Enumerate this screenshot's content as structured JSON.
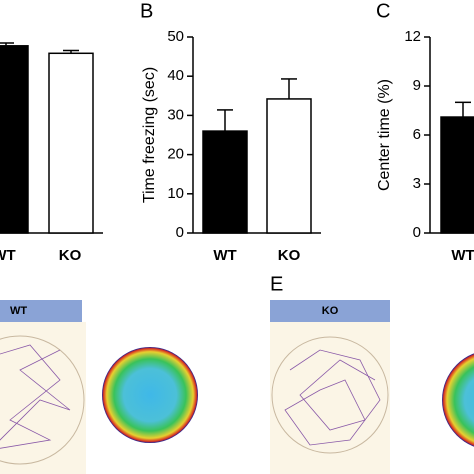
{
  "chart_data": [
    {
      "type": "bar",
      "categories": [
        "WT",
        "KO"
      ],
      "values": [
        100,
        96
      ],
      "errors": [
        1.5,
        1.5
      ],
      "colors": [
        "#000000",
        "#ffffff"
      ]
    },
    {
      "type": "bar",
      "ylabel": "Time freezing (sec)",
      "categories": [
        "WT",
        "KO"
      ],
      "values": [
        26,
        34.2
      ],
      "errors": [
        5.4,
        5.1
      ],
      "colors": [
        "#000000",
        "#ffffff"
      ],
      "ylim": [
        0,
        50
      ],
      "yticks": [
        0,
        10,
        20,
        30,
        40,
        50
      ]
    },
    {
      "type": "bar",
      "ylabel": "Center time (%)",
      "categories": [
        "WT"
      ],
      "values": [
        7.1
      ],
      "errors": [
        0.9
      ],
      "colors": [
        "#000000"
      ],
      "ylim": [
        0,
        12
      ],
      "yticks": [
        0,
        3,
        6,
        9,
        12
      ]
    }
  ],
  "panel_labels": [
    "B",
    "C",
    "E"
  ],
  "tracking": {
    "left_header": "WT",
    "right_header": "KO"
  }
}
